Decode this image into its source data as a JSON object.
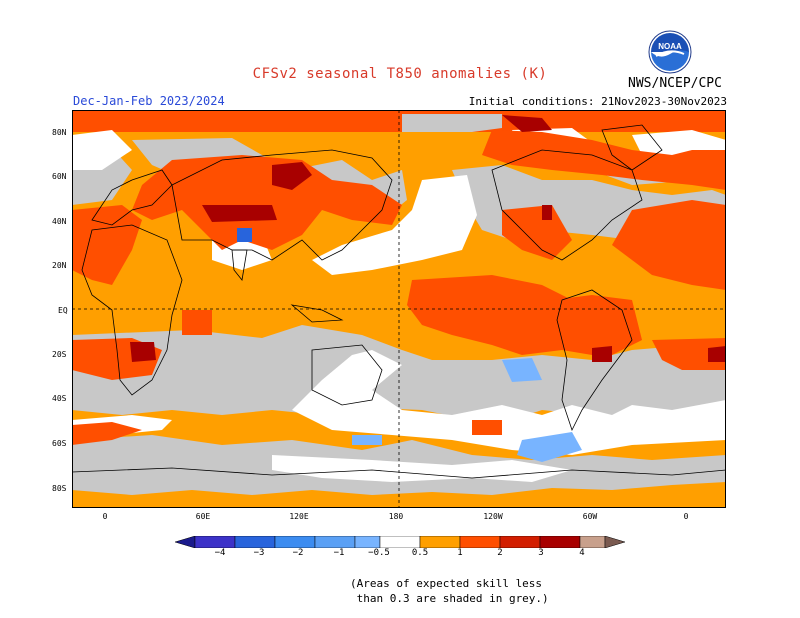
{
  "header": {
    "title": "CFSv2 seasonal T850 anomalies (K)",
    "agency": "NWS/NCEP/CPC",
    "season": "Dec-Jan-Feb 2023/2024",
    "initial_conditions": "Initial conditions: 21Nov2023-30Nov2023"
  },
  "map": {
    "lat_labels": [
      "80N",
      "60N",
      "40N",
      "20N",
      "EQ",
      "20S",
      "40S",
      "60S",
      "80S"
    ],
    "lon_labels": [
      "0",
      "60E",
      "120E",
      "180",
      "120W",
      "60W",
      "0"
    ],
    "colors": {
      "grey": "#c8c8c8",
      "orange": "#ff9f00",
      "red_orange": "#ff4f00",
      "dark_red": "#a80000",
      "light_blue": "#78b4ff",
      "white": "#ffffff"
    }
  },
  "colorbar": {
    "labels": [
      "−4",
      "−3",
      "−2",
      "−1",
      "−0.5",
      "0.5",
      "1",
      "2",
      "3",
      "4"
    ],
    "colors": [
      "#1a1a8c",
      "#3c32c8",
      "#2864dc",
      "#3c8cf0",
      "#78b4ff",
      "#ffffff",
      "#ff9f00",
      "#ff4f00",
      "#d21e00",
      "#a80000",
      "#c8a08c",
      "#7a5a50"
    ]
  },
  "note": {
    "line1": "(Areas of expected skill less",
    "line2": " than 0.3 are shaded in grey.)"
  }
}
